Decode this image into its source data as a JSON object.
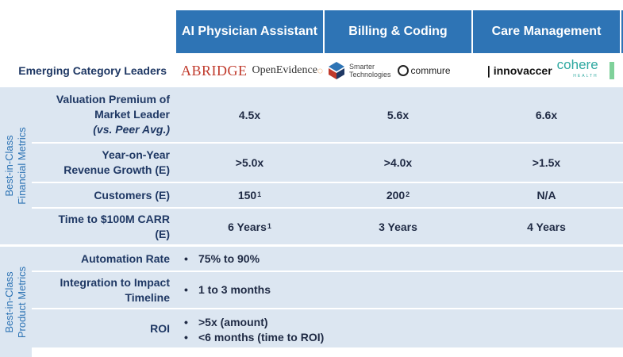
{
  "columns": [
    "AI Physician Assistant",
    "Billing & Coding",
    "Care Management"
  ],
  "leaders_label": "Emerging Category Leaders",
  "logos": {
    "col1": [
      "ABRIDGE",
      "OpenEvidence"
    ],
    "col2": [
      "Smarter",
      "Technologies",
      "commure"
    ],
    "col3": [
      "innovaccer",
      "cohere",
      "HEALTH"
    ]
  },
  "sections": {
    "financial": "Best-in-Class Financial Metrics",
    "financial_l1": "Best-in-Class",
    "financial_l2": "Financial Metrics",
    "product_l1": "Best-in-Class",
    "product_l2": "Product Metrics"
  },
  "financial_rows": [
    {
      "label_l1": "Valuation Premium of",
      "label_l2": "Market Leader",
      "label_l3": "(vs. Peer Avg.)",
      "values": [
        "4.5x",
        "5.6x",
        "6.6x"
      ]
    },
    {
      "label_l1": "Year-on-Year",
      "label_l2": "Revenue Growth (E)",
      "values": [
        ">5.0x",
        ">4.0x",
        ">1.5x"
      ]
    },
    {
      "label": "Customers (E)",
      "values": [
        "150",
        "200",
        "N/A"
      ],
      "sups": [
        "1",
        "2",
        ""
      ]
    },
    {
      "label_l1": "Time to $100M CARR",
      "label_l2": "(E)",
      "values": [
        "6 Years",
        "3 Years",
        "4 Years"
      ],
      "sups": [
        "1",
        "",
        ""
      ]
    }
  ],
  "product_rows": [
    {
      "label": "Automation Rate",
      "bullets": [
        "75% to 90%"
      ]
    },
    {
      "label_l1": "Integration to Impact",
      "label_l2": "Timeline",
      "bullets": [
        "1 to 3 months"
      ]
    },
    {
      "label": "ROI",
      "bullets": [
        ">5x (amount)",
        "<6 months (time to ROI)"
      ]
    }
  ],
  "colors": {
    "header": "#2e74b5",
    "band": "#dce6f1",
    "label": "#1f3864"
  }
}
